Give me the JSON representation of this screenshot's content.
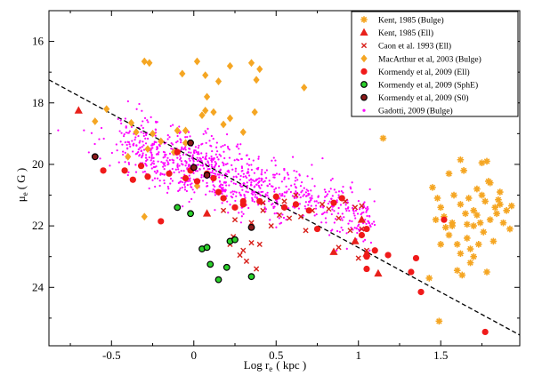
{
  "chart_data": {
    "type": "scatter",
    "xlabel": "Log r",
    "xlabel_sub": "e",
    "xlabel_unit": "( kpc )",
    "ylabel": "μ",
    "ylabel_sub": "e",
    "ylabel_unit": "( G )",
    "xlim": [
      -0.88,
      1.98
    ],
    "ylim": [
      25.9,
      15.0
    ],
    "y_inverted": true,
    "xticks": [
      -0.5,
      0,
      0.5,
      1,
      1.5
    ],
    "xtick_labels": [
      "-0.5",
      "0",
      "0.5",
      "1",
      "1.5"
    ],
    "yticks": [
      16,
      18,
      20,
      22,
      24
    ],
    "ytick_labels": [
      "16",
      "18",
      "20",
      "22",
      "24"
    ],
    "grid": false,
    "legend_position": "top-right",
    "reference_line": {
      "style": "dashed",
      "color": "#000000",
      "points": [
        [
          -0.88,
          17.25
        ],
        [
          1.98,
          25.55
        ]
      ]
    },
    "series": [
      {
        "name": "Kent, 1985 (Bulge)",
        "marker": "star",
        "color": "#f5a623",
        "points": [
          [
            1.15,
            19.15
          ],
          [
            1.45,
            20.75
          ],
          [
            1.48,
            21.1
          ],
          [
            1.5,
            21.4
          ],
          [
            1.52,
            21.7
          ],
          [
            1.53,
            22.05
          ],
          [
            1.55,
            22.3
          ],
          [
            1.57,
            21.9
          ],
          [
            1.58,
            21.0
          ],
          [
            1.6,
            22.6
          ],
          [
            1.62,
            21.3
          ],
          [
            1.62,
            22.9
          ],
          [
            1.64,
            20.2
          ],
          [
            1.65,
            21.6
          ],
          [
            1.66,
            22.4
          ],
          [
            1.67,
            21.1
          ],
          [
            1.68,
            23.2
          ],
          [
            1.7,
            21.5
          ],
          [
            1.7,
            22.0
          ],
          [
            1.72,
            20.8
          ],
          [
            1.73,
            22.6
          ],
          [
            1.74,
            21.9
          ],
          [
            1.75,
            19.95
          ],
          [
            1.76,
            22.2
          ],
          [
            1.77,
            21.2
          ],
          [
            1.78,
            23.5
          ],
          [
            1.8,
            21.8
          ],
          [
            1.8,
            20.6
          ],
          [
            1.82,
            22.5
          ],
          [
            1.83,
            21.4
          ],
          [
            1.84,
            21.6
          ],
          [
            1.86,
            20.9
          ],
          [
            1.86,
            21.3
          ],
          [
            1.88,
            21.9
          ],
          [
            1.9,
            21.5
          ],
          [
            1.92,
            22.1
          ],
          [
            1.93,
            21.35
          ],
          [
            1.55,
            20.3
          ],
          [
            1.6,
            23.45
          ],
          [
            1.63,
            23.6
          ],
          [
            1.68,
            22.75
          ],
          [
            1.72,
            21.65
          ],
          [
            1.79,
            20.55
          ],
          [
            1.7,
            23.0
          ],
          [
            1.47,
            21.8
          ],
          [
            1.5,
            22.6
          ],
          [
            1.57,
            22.0
          ],
          [
            1.75,
            21.0
          ],
          [
            1.85,
            21.15
          ],
          [
            1.66,
            21.95
          ],
          [
            1.49,
            25.1
          ],
          [
            1.43,
            23.7
          ],
          [
            1.62,
            19.85
          ],
          [
            1.78,
            19.9
          ]
        ]
      },
      {
        "name": "Kent, 1985 (Ell)",
        "marker": "triangle",
        "color": "#e8201a",
        "points": [
          [
            -0.7,
            18.25
          ],
          [
            0.08,
            21.6
          ],
          [
            0.98,
            22.5
          ],
          [
            1.05,
            22.9
          ],
          [
            1.12,
            23.55
          ],
          [
            0.85,
            22.85
          ],
          [
            1.02,
            21.8
          ]
        ]
      },
      {
        "name": "Caon et al. 1993 (Ell)",
        "marker": "x",
        "color": "#d8201a",
        "points": [
          [
            0.22,
            22.6
          ],
          [
            0.24,
            22.35
          ],
          [
            0.28,
            22.95
          ],
          [
            0.3,
            22.8
          ],
          [
            0.32,
            23.15
          ],
          [
            0.35,
            22.55
          ],
          [
            0.38,
            23.4
          ],
          [
            0.4,
            22.6
          ],
          [
            0.42,
            21.25
          ],
          [
            0.47,
            22.0
          ],
          [
            0.52,
            21.65
          ],
          [
            0.55,
            21.2
          ],
          [
            0.58,
            21.75
          ],
          [
            0.65,
            21.7
          ],
          [
            0.68,
            22.15
          ],
          [
            0.72,
            21.5
          ],
          [
            0.78,
            21.3
          ],
          [
            0.82,
            21.45
          ],
          [
            0.88,
            21.75
          ],
          [
            0.92,
            21.2
          ],
          [
            0.98,
            21.4
          ],
          [
            1.02,
            21.35
          ],
          [
            1.02,
            22.1
          ],
          [
            1.05,
            22.8
          ],
          [
            1.0,
            23.05
          ],
          [
            0.95,
            22.15
          ],
          [
            0.88,
            22.7
          ],
          [
            0.18,
            21.5
          ],
          [
            0.25,
            21.8
          ],
          [
            0.35,
            21.9
          ],
          [
            0.42,
            21.5
          ],
          [
            0.62,
            21.0
          ]
        ]
      },
      {
        "name": "MacArthur et al, 2003 (Bulge)",
        "marker": "diamond",
        "color": "#f5a623",
        "points": [
          [
            -0.3,
            16.65
          ],
          [
            -0.27,
            16.7
          ],
          [
            -0.07,
            17.05
          ],
          [
            0.02,
            16.65
          ],
          [
            0.07,
            17.1
          ],
          [
            0.15,
            17.3
          ],
          [
            0.22,
            16.8
          ],
          [
            0.35,
            16.7
          ],
          [
            0.38,
            17.25
          ],
          [
            0.4,
            16.9
          ],
          [
            0.67,
            17.5
          ],
          [
            -0.6,
            18.6
          ],
          [
            -0.53,
            18.2
          ],
          [
            -0.38,
            18.65
          ],
          [
            -0.35,
            18.95
          ],
          [
            -0.25,
            19.0
          ],
          [
            -0.1,
            18.9
          ],
          [
            -0.05,
            18.9
          ],
          [
            0.05,
            18.4
          ],
          [
            0.07,
            18.25
          ],
          [
            0.08,
            17.8
          ],
          [
            0.12,
            18.3
          ],
          [
            0.18,
            18.7
          ],
          [
            0.22,
            18.5
          ],
          [
            0.3,
            18.95
          ],
          [
            0.37,
            18.3
          ],
          [
            -0.28,
            19.5
          ],
          [
            -0.2,
            19.25
          ],
          [
            -0.12,
            19.6
          ],
          [
            -0.05,
            19.3
          ],
          [
            -0.3,
            21.7
          ],
          [
            0.02,
            20.7
          ],
          [
            -0.4,
            19.75
          ]
        ]
      },
      {
        "name": "Kormendy et al, 2009 (Ell)",
        "marker": "circle",
        "color": "#f01a1a",
        "points": [
          [
            -0.93,
            19.85
          ],
          [
            -0.55,
            20.2
          ],
          [
            -0.37,
            20.5
          ],
          [
            -0.28,
            20.4
          ],
          [
            -0.2,
            21.85
          ],
          [
            -0.15,
            20.3
          ],
          [
            -0.1,
            19.6
          ],
          [
            0.02,
            20.55
          ],
          [
            0.08,
            20.3
          ],
          [
            0.12,
            20.45
          ],
          [
            0.15,
            20.9
          ],
          [
            0.18,
            21.1
          ],
          [
            0.25,
            21.4
          ],
          [
            0.3,
            21.2
          ],
          [
            0.4,
            21.2
          ],
          [
            0.5,
            21.05
          ],
          [
            0.55,
            21.4
          ],
          [
            0.62,
            21.3
          ],
          [
            0.7,
            21.5
          ],
          [
            0.75,
            22.1
          ],
          [
            0.9,
            21.1
          ],
          [
            1.02,
            22.3
          ],
          [
            1.05,
            22.1
          ],
          [
            1.05,
            23.0
          ],
          [
            1.05,
            23.4
          ],
          [
            1.1,
            22.8
          ],
          [
            1.18,
            22.95
          ],
          [
            1.32,
            23.5
          ],
          [
            1.35,
            23.05
          ],
          [
            1.38,
            24.15
          ],
          [
            1.52,
            21.8
          ],
          [
            1.77,
            25.45
          ],
          [
            -0.32,
            20.05
          ],
          [
            -0.42,
            20.2
          ],
          [
            -0.05,
            20.45
          ],
          [
            -0.02,
            20.2
          ],
          [
            0.3,
            21.3
          ],
          [
            0.85,
            21.25
          ]
        ]
      },
      {
        "name": "Kormendy et al, 2009 (SphE)",
        "marker": "circle-outlined",
        "color": "#2bd12b",
        "points": [
          [
            -0.1,
            21.4
          ],
          [
            -0.02,
            21.6
          ],
          [
            0.05,
            22.75
          ],
          [
            0.08,
            22.7
          ],
          [
            0.1,
            23.25
          ],
          [
            0.15,
            23.75
          ],
          [
            0.2,
            23.35
          ],
          [
            0.22,
            22.5
          ],
          [
            0.25,
            22.45
          ],
          [
            0.35,
            23.65
          ]
        ]
      },
      {
        "name": "Kormendy et al, 2009 (S0)",
        "marker": "circle-outlined",
        "color": "#8b1a1a",
        "points": [
          [
            -0.6,
            19.75
          ],
          [
            0.0,
            20.1
          ],
          [
            0.08,
            20.35
          ],
          [
            0.35,
            22.05
          ],
          [
            -0.02,
            19.3
          ]
        ]
      },
      {
        "name": "Gadotti, 2009 (Bulge)",
        "marker": "dot",
        "color": "#ff00ff",
        "cloud": {
          "count": 1000,
          "x_range": [
            -0.45,
            1.1
          ],
          "center_line": {
            "intercept": 20.05,
            "slope": 1.55
          },
          "y_spread": 1.6
        }
      }
    ]
  }
}
